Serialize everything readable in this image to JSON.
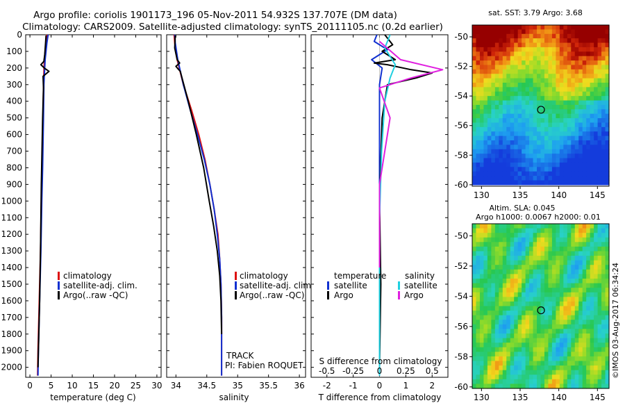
{
  "header": {
    "title_line1": "Argo profile: coriolis 1901173_196 05-Nov-2011 54.932S 137.707E (DM data)",
    "title_line2": "Climatology: CARS2009. Satellite-adjusted climatology: synTS_20111105.nc (0.2d earlier)"
  },
  "colors": {
    "climatology": "#dd1111",
    "satellite": "#1030d0",
    "argo": "#000000",
    "sal_satellite": "#20d0e0",
    "sal_argo": "#e020e0"
  },
  "chart_data": [
    {
      "type": "line",
      "name": "temperature-profile",
      "xlabel": "temperature (deg C)",
      "ylabel": "",
      "xlim": [
        -1,
        31
      ],
      "ylim": [
        2060,
        0
      ],
      "xticks": [
        "0",
        "5",
        "10",
        "15",
        "20",
        "25",
        "30"
      ],
      "xtick_values": [
        0,
        5,
        10,
        15,
        20,
        25,
        30
      ],
      "yticks": [
        "0",
        "100",
        "200",
        "300",
        "400",
        "500",
        "600",
        "700",
        "800",
        "900",
        "1000",
        "1100",
        "1200",
        "1300",
        "1400",
        "1500",
        "1600",
        "1700",
        "1800",
        "1900",
        "2000"
      ],
      "ytick_values": [
        0,
        100,
        200,
        300,
        400,
        500,
        600,
        700,
        800,
        900,
        1000,
        1100,
        1200,
        1300,
        1400,
        1500,
        1600,
        1700,
        1800,
        1900,
        2000
      ],
      "legend": [
        "climatology",
        "satellite-adj. clim.",
        "Argo(..raw -QC)"
      ],
      "series": [
        {
          "name": "climatology",
          "x": [
            4.0,
            3.8,
            3.4,
            3.2,
            3.1,
            2.9,
            2.7,
            2.5,
            2.3,
            2.1,
            1.9,
            1.8
          ],
          "y": [
            0,
            50,
            150,
            300,
            500,
            800,
            1000,
            1300,
            1500,
            1700,
            1900,
            2050
          ]
        },
        {
          "name": "satellite-adj. clim.",
          "x": [
            4.3,
            4.0,
            3.6,
            3.3,
            3.2,
            3.0,
            2.8,
            2.6,
            2.4,
            2.2,
            2.0,
            1.9
          ],
          "y": [
            0,
            50,
            150,
            300,
            500,
            800,
            1000,
            1300,
            1500,
            1700,
            1900,
            2050
          ]
        },
        {
          "name": "Argo(..raw -QC)",
          "x": [
            3.8,
            3.7,
            3.5,
            3.3,
            2.6,
            3.4,
            4.5,
            3.1,
            3.2,
            3.0,
            2.7,
            2.5,
            2.3,
            2.1,
            1.9
          ],
          "y": [
            5,
            50,
            120,
            160,
            180,
            200,
            220,
            250,
            320,
            500,
            900,
            1300,
            1600,
            1800,
            2000
          ]
        }
      ]
    },
    {
      "type": "line",
      "name": "salinity-profile",
      "xlabel": "salinity",
      "xlim": [
        33.85,
        36.1
      ],
      "ylim": [
        2060,
        0
      ],
      "xticks": [
        "34",
        "34.5",
        "35",
        "35.5",
        "36"
      ],
      "xtick_values": [
        34,
        34.5,
        35,
        35.5,
        36
      ],
      "legend": [
        "climatology",
        "satellite-adj. clim.",
        "Argo(..raw -QC)"
      ],
      "annotations": [
        "TRACK",
        "PI: Fabien ROQUET"
      ],
      "series": [
        {
          "name": "climatology",
          "x": [
            33.97,
            33.98,
            34.02,
            34.12,
            34.25,
            34.37,
            34.47,
            34.55,
            34.62,
            34.68,
            34.71,
            34.73,
            34.74,
            34.74,
            34.74
          ],
          "y": [
            0,
            50,
            150,
            300,
            450,
            600,
            750,
            900,
            1050,
            1200,
            1350,
            1500,
            1700,
            1900,
            2050
          ]
        },
        {
          "name": "satellite-adj. clim.",
          "x": [
            33.98,
            33.99,
            34.03,
            34.12,
            34.23,
            34.35,
            34.46,
            34.55,
            34.62,
            34.67,
            34.71,
            34.73,
            34.74,
            34.74,
            34.74
          ],
          "y": [
            0,
            50,
            150,
            300,
            450,
            600,
            750,
            900,
            1050,
            1200,
            1350,
            1500,
            1700,
            1900,
            2050
          ]
        },
        {
          "name": "Argo(..raw -QC)",
          "x": [
            33.99,
            33.98,
            34.02,
            34.06,
            34.0,
            34.07,
            34.2,
            34.33,
            34.45,
            34.54,
            34.61,
            34.67,
            34.71,
            34.73,
            34.74
          ],
          "y": [
            5,
            80,
            150,
            170,
            190,
            220,
            400,
            600,
            800,
            1000,
            1150,
            1300,
            1450,
            1600,
            1800
          ]
        }
      ]
    },
    {
      "type": "line",
      "name": "difference-profile",
      "xlabel": "T difference from climatology",
      "top_xlabel": "S difference from climatology",
      "xlim": [
        -2.6,
        2.6
      ],
      "ylim": [
        2060,
        0
      ],
      "xticks": [
        "-2",
        "-1",
        "0",
        "1",
        "2"
      ],
      "xtick_values": [
        -2,
        -1,
        0,
        1,
        2
      ],
      "top_xticks": [
        "-0.5",
        "-0.25",
        "0",
        "0.25",
        "0.5"
      ],
      "top_xtick_values": [
        -0.5,
        -0.25,
        0,
        0.25,
        0.5
      ],
      "legend_headers": [
        "temperature",
        "salinity"
      ],
      "legend": [
        "satellite",
        "Argo",
        "satellite",
        "Argo"
      ],
      "series": [
        {
          "name": "T satellite",
          "x": [
            -0.1,
            -0.2,
            0.3,
            -0.3,
            0.1,
            0.0,
            0.0,
            0.0,
            0.0
          ],
          "y": [
            0,
            40,
            90,
            150,
            200,
            300,
            600,
            1000,
            2050
          ]
        },
        {
          "name": "T Argo",
          "x": [
            0.2,
            0.5,
            0.1,
            0.6,
            -0.2,
            0.3,
            1.2,
            2.0,
            1.4,
            0.3,
            0.1,
            0.0,
            0.05,
            0.0
          ],
          "y": [
            0,
            60,
            100,
            150,
            170,
            180,
            210,
            230,
            260,
            300,
            500,
            1000,
            1500,
            2000
          ]
        },
        {
          "name": "S satellite",
          "x": [
            0.1,
            0.05,
            0.15,
            0.1,
            0.05,
            0.02,
            0.0,
            0.0
          ],
          "y": [
            0,
            80,
            180,
            260,
            400,
            700,
            1100,
            2050
          ]
        },
        {
          "name": "S Argo",
          "x": [
            0.0,
            0.2,
            0.6,
            0.3,
            0.0,
            0.1,
            0.0,
            0.0
          ],
          "y": [
            40,
            150,
            210,
            260,
            320,
            500,
            900,
            1400
          ]
        }
      ]
    },
    {
      "type": "heatmap",
      "name": "sst-map",
      "title": "sat. SST: 3.79 Argo: 3.68",
      "xlim": [
        128.8,
        146.5
      ],
      "ylim": [
        -60.1,
        -49.2
      ],
      "xticks": [
        "130",
        "135",
        "140",
        "145"
      ],
      "xtick_values": [
        130,
        135,
        140,
        145
      ],
      "yticks": [
        "-50",
        "-52",
        "-54",
        "-56",
        "-58",
        "-60"
      ],
      "ytick_values": [
        -50,
        -52,
        -54,
        -56,
        -58,
        -60
      ],
      "marker": {
        "lon": 137.7,
        "lat": -54.93
      }
    },
    {
      "type": "heatmap",
      "name": "sla-map",
      "title_line1": "Altim. SLA: 0.045",
      "title_line2": "Argo h1000: 0.0067 h2000: 0.01",
      "xlim": [
        128.8,
        146.5
      ],
      "ylim": [
        -60.1,
        -49.2
      ],
      "xticks": [
        "130",
        "135",
        "140",
        "145"
      ],
      "xtick_values": [
        130,
        135,
        140,
        145
      ],
      "yticks": [
        "-50",
        "-52",
        "-54",
        "-56",
        "-58",
        "-60"
      ],
      "ytick_values": [
        -50,
        -52,
        -54,
        -56,
        -58,
        -60
      ],
      "marker": {
        "lon": 137.7,
        "lat": -54.93
      }
    }
  ],
  "watermark": "©IMOS 03-Aug-2017 06:34:24"
}
